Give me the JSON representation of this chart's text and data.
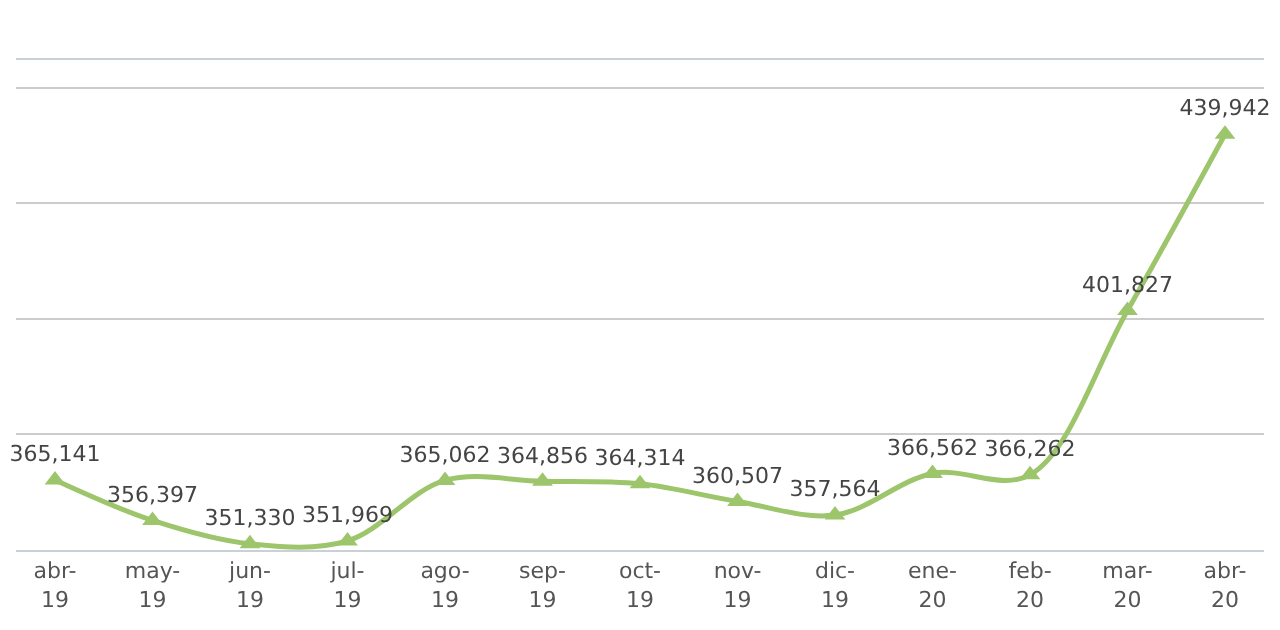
{
  "chart_data": {
    "type": "line",
    "categories": [
      "abr-19",
      "may-19",
      "jun-19",
      "jul-19",
      "ago-19",
      "sep-19",
      "oct-19",
      "nov-19",
      "dic-19",
      "ene-20",
      "feb-20",
      "mar-20",
      "abr-20"
    ],
    "values": [
      365141,
      356397,
      351330,
      351969,
      365062,
      364856,
      364314,
      360507,
      357564,
      366562,
      366262,
      401827,
      439942
    ],
    "color": "#9dc56b",
    "value_labels": [
      "365,141",
      "356,397",
      "351,330",
      "351,969",
      "365,062",
      "364,856",
      "364,314",
      "360,507",
      "357,564",
      "366,562",
      "366,262",
      "401,827",
      "439,942"
    ],
    "ylim": [
      350000,
      456000
    ],
    "yticks": [
      {
        "value": 375000,
        "label": null
      },
      {
        "value": 400000,
        "label": null
      },
      {
        "value": 425000,
        "label": null
      },
      {
        "value": 450000,
        "label": null
      }
    ],
    "grid": "y",
    "marker": "triangle",
    "line_style": "solid",
    "legend": false
  }
}
